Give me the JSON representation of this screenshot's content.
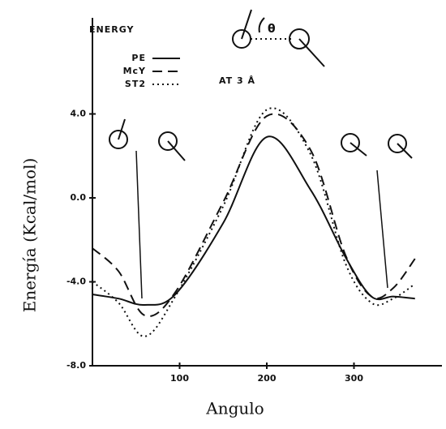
{
  "chart_data": {
    "type": "line",
    "y_label": "Energía (Kcal/mol)",
    "x_label": "Angulo",
    "energy_label": "ENERGY",
    "distance_note": "AT 3 Å",
    "angle_symbol": "θ",
    "x": [
      0,
      30,
      60,
      95,
      150,
      200,
      250,
      290,
      320,
      345,
      370
    ],
    "series": [
      {
        "name": "PE",
        "color": "#111111",
        "style": "solid",
        "values": [
          -4.6,
          -4.8,
          -5.1,
          -4.6,
          -1.2,
          2.9,
          0.4,
          -2.8,
          -4.7,
          -4.7,
          -4.8
        ]
      },
      {
        "name": "McY",
        "color": "#111111",
        "style": "dashed",
        "values": [
          -2.4,
          -3.5,
          -5.6,
          -4.5,
          -0.2,
          3.9,
          2.3,
          -2.7,
          -4.7,
          -4.3,
          -2.9
        ]
      },
      {
        "name": "ST2",
        "color": "#111111",
        "style": "dotted",
        "values": [
          -4.0,
          -5.0,
          -6.6,
          -4.7,
          -0.4,
          4.2,
          2.1,
          -3.1,
          -5.0,
          -4.8,
          -4.1
        ]
      }
    ],
    "xlim": [
      0,
      400
    ],
    "xticks": [
      100,
      200,
      300
    ],
    "ylim": [
      -8,
      8
    ],
    "yticks": [
      {
        "value": 4,
        "label": "4.0"
      },
      {
        "value": 0,
        "label": "0.0"
      },
      {
        "value": -4,
        "label": "-4.0"
      },
      {
        "value": -8,
        "label": "-8.0"
      }
    ]
  }
}
